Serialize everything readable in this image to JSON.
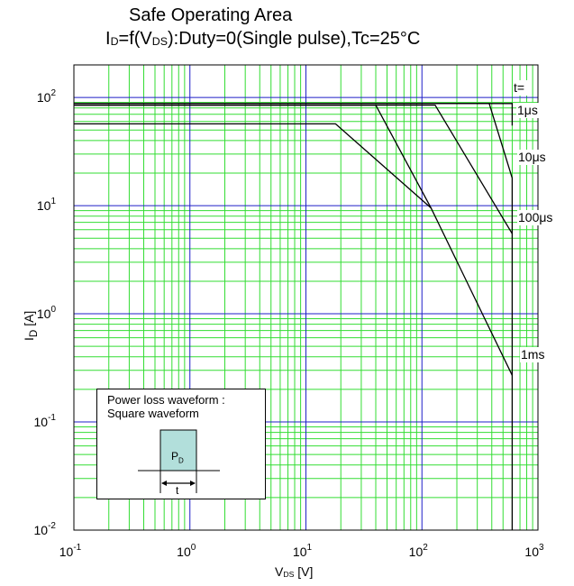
{
  "title": {
    "line1": "Safe Operating Area",
    "l2_a": "I",
    "l2_sub1": "D",
    "l2_b": "=f(V",
    "l2_sub2": "DS",
    "l2_c": "):Duty=0(Single pulse),Tc=25°C"
  },
  "axes": {
    "y_main": "I",
    "y_sub": "D",
    "y_unit": " [A]",
    "x_main": "V",
    "x_sub": "DS",
    "x_unit": " [V]"
  },
  "colors": {
    "major_grid": "#1f1fc8",
    "minor_grid": "#33dd33",
    "curve": "#000000",
    "inset_fill": "#b2dfdb"
  },
  "inset": {
    "line1": "Power loss waveform :",
    "line2": "Square waveform",
    "pd_main": "P",
    "pd_sub": "D",
    "t_label": "t"
  },
  "chart_data": {
    "type": "line",
    "title": "Safe Operating Area",
    "xlabel": "VDS [V]",
    "ylabel": "ID [A]",
    "x_scale": "log",
    "y_scale": "log",
    "xlim": [
      0.1,
      1000
    ],
    "ylim": [
      0.01,
      200
    ],
    "grid": true,
    "x_ticks": [
      {
        "value": 0.1,
        "base": "10",
        "exp": "-1"
      },
      {
        "value": 1,
        "base": "10",
        "exp": "0"
      },
      {
        "value": 10,
        "base": "10",
        "exp": "1"
      },
      {
        "value": 100,
        "base": "10",
        "exp": "2"
      },
      {
        "value": 1000,
        "base": "10",
        "exp": "3"
      }
    ],
    "y_ticks": [
      {
        "value": 0.01,
        "base": "10",
        "exp": "-2"
      },
      {
        "value": 0.1,
        "base": "10",
        "exp": "-1"
      },
      {
        "value": 1,
        "base": "10",
        "exp": "0"
      },
      {
        "value": 10,
        "base": "10",
        "exp": "1"
      },
      {
        "value": 100,
        "base": "10",
        "exp": "2"
      }
    ],
    "t_header": "t=",
    "series": [
      {
        "name": "1μs",
        "x": [
          0.1,
          600,
          600
        ],
        "y": [
          88,
          88,
          55
        ]
      },
      {
        "name": "10μs",
        "x": [
          0.1,
          380,
          600,
          600
        ],
        "y": [
          88,
          88,
          18,
          0.01
        ]
      },
      {
        "name": "100μs",
        "x": [
          0.1,
          130,
          600
        ],
        "y": [
          85,
          85,
          5.5
        ]
      },
      {
        "name": "1ms",
        "x": [
          0.1,
          40,
          120,
          600
        ],
        "y": [
          85,
          85,
          9.5,
          0.27
        ]
      },
      {
        "name": "",
        "x": [
          0.1,
          18,
          120
        ],
        "y": [
          57,
          57,
          9.5
        ]
      }
    ]
  }
}
